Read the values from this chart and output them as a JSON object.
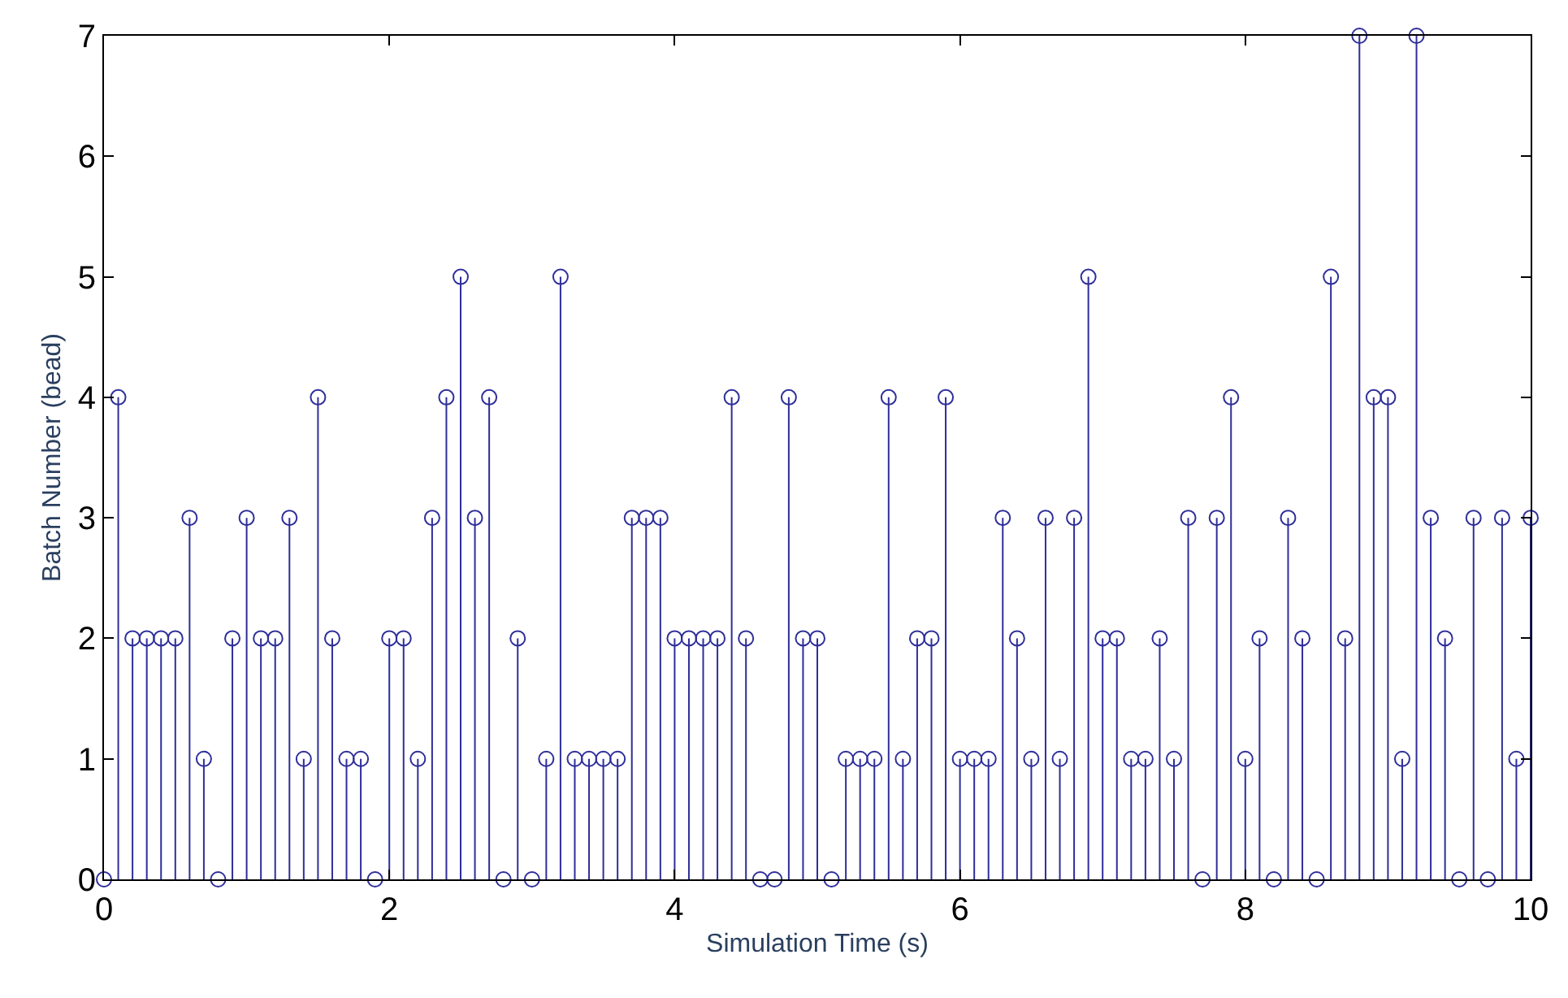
{
  "chart_data": {
    "type": "lollipop",
    "xlabel": "Simulation Time (s)",
    "ylabel": "Batch Number (bead)",
    "x": [
      0,
      0.1,
      0.2,
      0.3,
      0.4,
      0.5,
      0.6,
      0.7,
      0.8,
      0.9,
      1,
      1.1,
      1.2,
      1.3,
      1.4,
      1.5,
      1.6,
      1.7,
      1.8,
      1.9,
      2,
      2.1,
      2.2,
      2.3,
      2.4,
      2.5,
      2.6,
      2.7,
      2.8,
      2.9,
      3,
      3.1,
      3.2,
      3.3,
      3.4,
      3.5,
      3.6,
      3.7,
      3.8,
      3.9,
      4,
      4.1,
      4.2,
      4.3,
      4.4,
      4.5,
      4.6,
      4.7,
      4.8,
      4.9,
      5,
      5.1,
      5.2,
      5.3,
      5.4,
      5.5,
      5.6,
      5.7,
      5.8,
      5.9,
      6,
      6.1,
      6.2,
      6.3,
      6.4,
      6.5,
      6.6,
      6.7,
      6.8,
      6.9,
      7,
      7.1,
      7.2,
      7.3,
      7.4,
      7.5,
      7.6,
      7.7,
      7.8,
      7.9,
      8,
      8.1,
      8.2,
      8.3,
      8.4,
      8.5,
      8.6,
      8.7,
      8.8,
      8.9,
      9,
      9.1,
      9.2,
      9.3,
      9.4,
      9.5,
      9.6,
      9.7,
      9.8,
      9.9,
      10
    ],
    "values": [
      0,
      4,
      2,
      2,
      2,
      2,
      3,
      1,
      0,
      2,
      3,
      2,
      2,
      3,
      1,
      4,
      2,
      1,
      1,
      0,
      2,
      2,
      1,
      3,
      4,
      5,
      3,
      4,
      0,
      2,
      0,
      1,
      5,
      1,
      1,
      1,
      1,
      3,
      3,
      3,
      2,
      2,
      2,
      2,
      4,
      2,
      0,
      0,
      4,
      2,
      2,
      0,
      1,
      1,
      1,
      4,
      1,
      2,
      2,
      4,
      1,
      1,
      1,
      3,
      2,
      1,
      3,
      1,
      3,
      5,
      2,
      2,
      1,
      1,
      2,
      1,
      3,
      0,
      3,
      4,
      1,
      2,
      0,
      3,
      2,
      0,
      5,
      2,
      7,
      4,
      4,
      1,
      7,
      3,
      2,
      0,
      3,
      0,
      3,
      1,
      3
    ],
    "color": "#2e2e9a",
    "marker": "circle",
    "xlim": [
      0,
      10
    ],
    "xticks": [
      0,
      2,
      4,
      6,
      8,
      10
    ],
    "ylim": [
      0,
      7
    ],
    "yticks": [
      0,
      1,
      2,
      3,
      4,
      5,
      6,
      7
    ],
    "grid": false
  }
}
